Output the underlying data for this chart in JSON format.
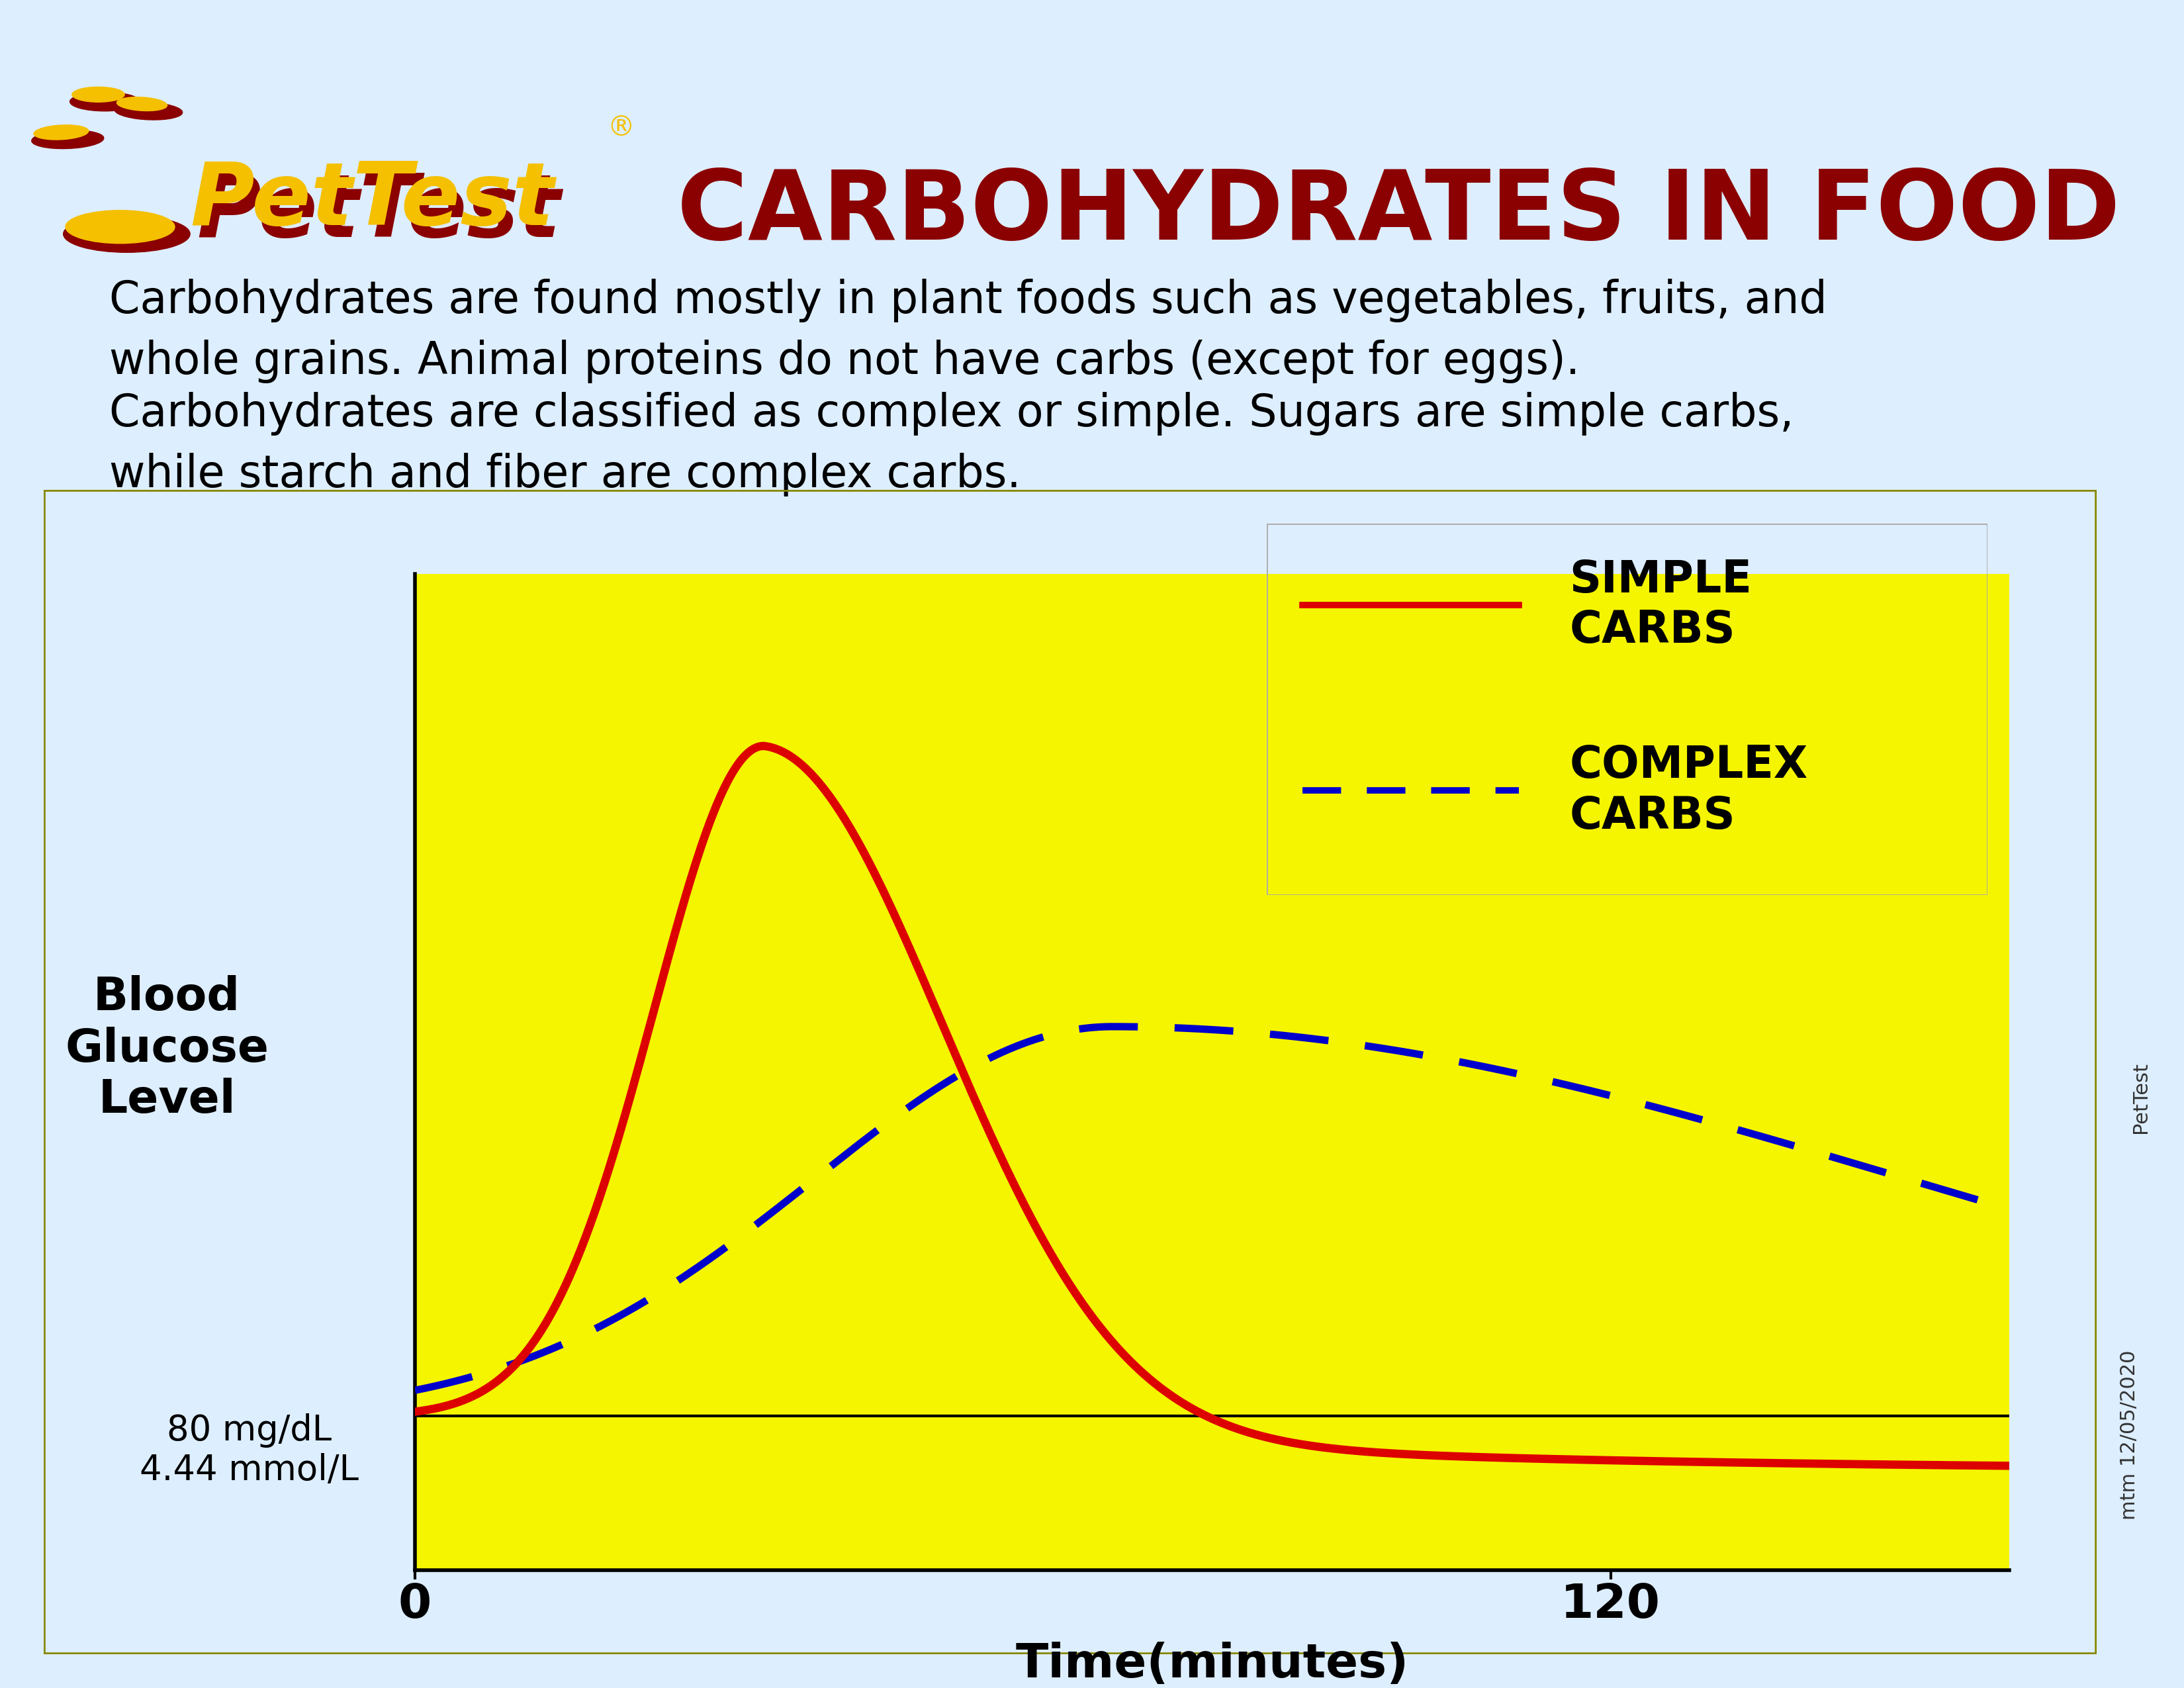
{
  "bg_color_top": "#ddeeff",
  "bg_color_chart": "#f5f500",
  "title_pettest_color": "#f5c000",
  "title_pettest_shadow": "#8b0000",
  "title_carbs_color": "#8b0000",
  "header_bg": "#cce0f0",
  "para1": "Carbohydrates are found mostly in plant foods such as vegetables, fruits, and\nwhole grains. Animal proteins do not have carbs (except for eggs).",
  "para2": "Carbohydrates are classified as complex or simple. Sugars are simple carbs,\nwhile starch and fiber are complex carbs.",
  "ylabel": "Blood\nGlucose\nLevel",
  "xlabel": "Time(minutes)",
  "y_label2": "80 mg/dL\n4.44 mmol/L",
  "x_tick_0": "0",
  "x_tick_120": "120",
  "simple_color": "#dd0000",
  "complex_color": "#0000cc",
  "legend_label1": "SIMPLE\nCARBS",
  "legend_label2": "COMPLEX\nCARBS",
  "watermark": "mtm 12/05/2020",
  "watermark2": "PetTest",
  "chart_border_color": "#888800",
  "axis_color": "#000000",
  "outer_border_color": "#888800"
}
